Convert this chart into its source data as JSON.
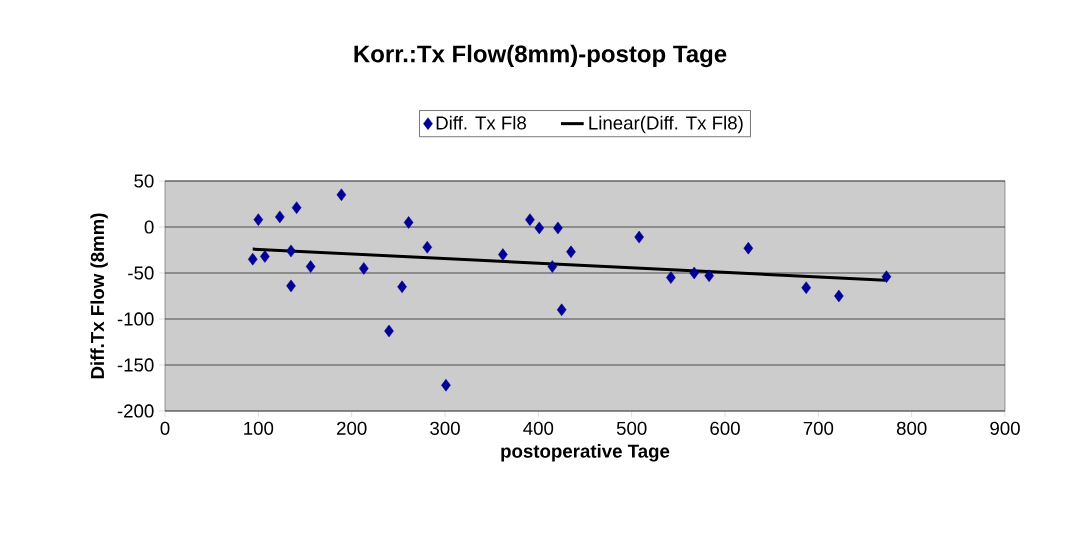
{
  "chart_data": {
    "type": "scatter",
    "title": "Korr.:Tx Flow(8mm)-postop Tage",
    "xlabel": "postoperative Tage",
    "ylabel": "Diff.Tx Flow (8mm)",
    "series": [
      {
        "name": "Diff. Tx Fl8",
        "marker": "diamond",
        "color": "#000099",
        "x": [
          94,
          100,
          107,
          123,
          135,
          135,
          141,
          156,
          189,
          213,
          240,
          254,
          261,
          281,
          301,
          362,
          391,
          401,
          415,
          421,
          425,
          435,
          508,
          542,
          567,
          583,
          625,
          687,
          722,
          773
        ],
        "values": [
          -35,
          8,
          -32,
          11,
          -26,
          -64,
          21,
          -43,
          35,
          -45,
          -113,
          -65,
          5,
          -22,
          -172,
          -30,
          8,
          -1,
          -43,
          -1,
          -90,
          -27,
          -11,
          -55,
          -50,
          -53,
          -23,
          -66,
          -75,
          -54
        ]
      },
      {
        "name": "Linear(Diff. Tx Fl8)",
        "type": "line",
        "marker": "none",
        "color": "#000000",
        "x": [
          94,
          772
        ],
        "values": [
          -24,
          -58
        ]
      }
    ],
    "xlim": [
      0,
      900
    ],
    "xticks": [
      0,
      100,
      200,
      300,
      400,
      500,
      600,
      700,
      800,
      900
    ],
    "ylim": [
      -200,
      50
    ],
    "yticks": [
      -200,
      -150,
      -100,
      -50,
      0,
      50
    ],
    "grid": "y",
    "legend": "top"
  }
}
